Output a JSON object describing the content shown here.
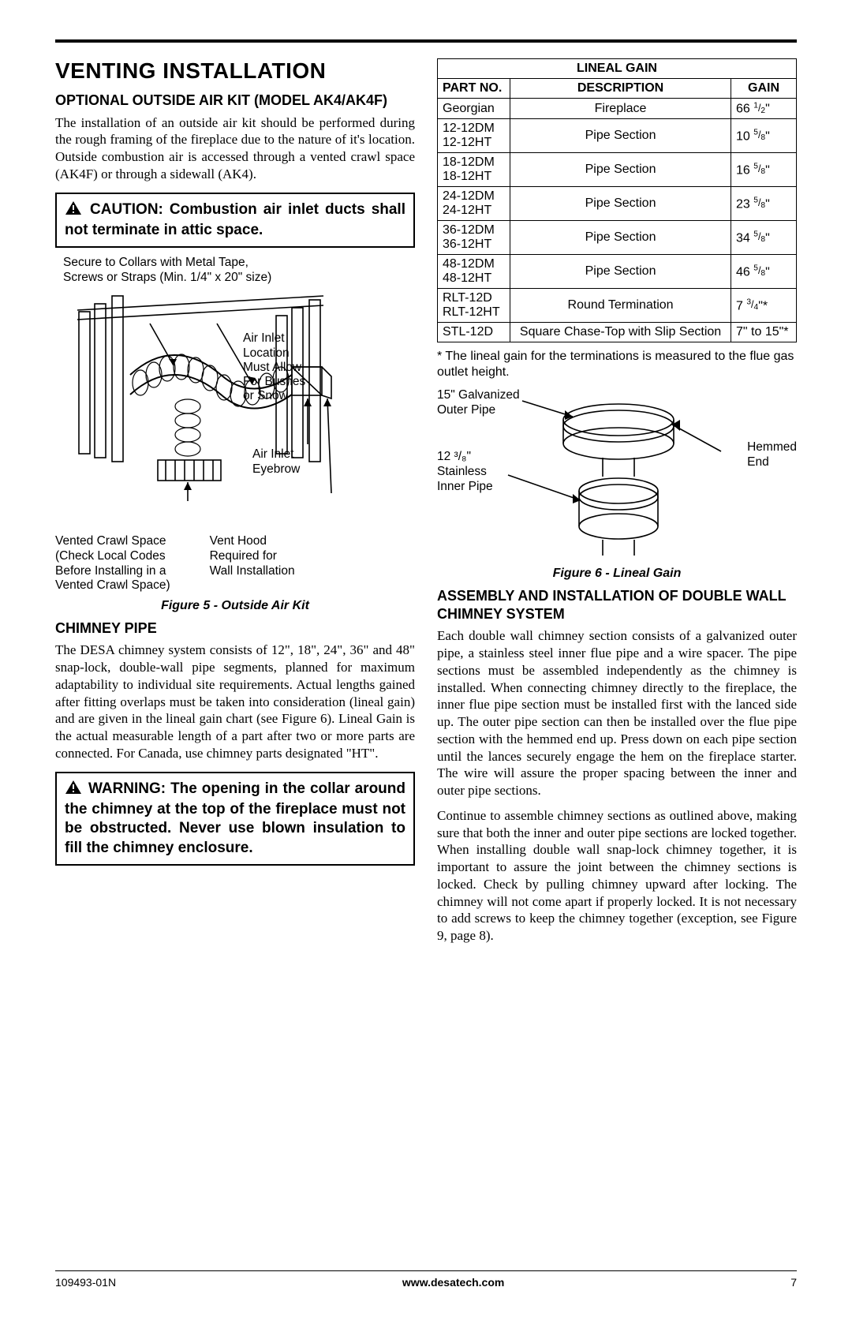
{
  "page": {
    "doc_number": "109493-01N",
    "site": "www.desatech.com",
    "page_number": "7"
  },
  "headings": {
    "main": "VENTING INSTALLATION",
    "optional_kit": "OPTIONAL OUTSIDE AIR KIT (MODEL AK4/AK4F)",
    "chimney_pipe": "CHIMNEY PIPE",
    "assembly": "ASSEMBLY AND INSTALLATION OF DOUBLE WALL CHIMNEY SYSTEM"
  },
  "paragraphs": {
    "optional_kit": "The installation of an outside air kit should be performed during the rough framing of the fireplace due to the nature of it's location. Outside combustion air is accessed through a vented crawl space (AK4F) or through a sidewall (AK4).",
    "chimney_pipe": "The DESA chimney system consists of 12\", 18\", 24\", 36\" and 48\" snap-lock, double-wall pipe segments, planned for maximum adaptability to individual site requirements. Actual lengths gained after fitting overlaps must be taken into consideration (lineal gain) and are given in the lineal gain chart (see Figure 6). Lineal Gain is the actual measurable length of a part after two or more parts are connected. For Canada, use chimney parts designated \"HT\".",
    "assembly_p1": "Each double wall chimney section consists of a galvanized outer pipe, a stainless steel inner flue pipe and a wire spacer. The pipe sections must be assembled independently as the chimney is installed. When connecting chimney directly to the fireplace, the inner flue pipe section must be installed first with the lanced side up. The outer pipe section can then be installed over the flue pipe section with the hemmed end up. Press down on each pipe section until the lances securely engage the hem on the fireplace starter. The wire will assure the proper spacing between the inner and outer pipe sections.",
    "assembly_p2": "Continue to assemble chimney sections as outlined above, making sure that both the inner and outer pipe sections are locked together. When installing double wall snap-lock chimney together, it is important to assure the joint between the chimney sections is locked. Check by pulling chimney upward after locking. The chimney will not come apart if properly locked. It is not necessary to add screws to keep the chimney together (exception, see Figure 9, page 8)."
  },
  "callouts": {
    "caution": " CAUTION: Combustion air inlet ducts shall not terminate in attic space.",
    "warning": " WARNING: The opening in the collar around the chimney at the top of the fireplace must not be obstructed. Never use blown insulation to fill the chimney enclosure."
  },
  "figure5": {
    "caption": "Figure 5 - Outside Air Kit",
    "top_note_l1": "Secure to Collars with Metal Tape,",
    "top_note_l2": "Screws or Straps (Min. 1/4\" x 20\" size)",
    "label_air_inlet_loc_l1": "Air Inlet",
    "label_air_inlet_loc_l2": "Location",
    "label_air_inlet_loc_l3": "Must Allow",
    "label_air_inlet_loc_l4": "For Bushes",
    "label_air_inlet_loc_l5": "or Snow",
    "label_eyebrow_l1": "Air Inlet",
    "label_eyebrow_l2": "Eyebrow",
    "label_vented_l1": "Vented Crawl Space",
    "label_vented_l2": "(Check Local Codes",
    "label_vented_l3": "Before Installing in a",
    "label_vented_l4": "Vented Crawl Space)",
    "label_venthood_l1": "Vent Hood",
    "label_venthood_l2": "Required for",
    "label_venthood_l3": "Wall Installation"
  },
  "lineal_table": {
    "title": "LINEAL GAIN",
    "columns": [
      "PART NO.",
      "DESCRIPTION",
      "GAIN"
    ],
    "rows": [
      {
        "parts": [
          "Georgian"
        ],
        "desc": "Fireplace",
        "gain_whole": "66",
        "gain_num": "1",
        "gain_den": "2",
        "star": ""
      },
      {
        "parts": [
          "12-12DM",
          "12-12HT"
        ],
        "desc": "Pipe Section",
        "gain_whole": "10",
        "gain_num": "5",
        "gain_den": "8",
        "star": ""
      },
      {
        "parts": [
          "18-12DM",
          "18-12HT"
        ],
        "desc": "Pipe Section",
        "gain_whole": "16",
        "gain_num": "5",
        "gain_den": "8",
        "star": ""
      },
      {
        "parts": [
          "24-12DM",
          "24-12HT"
        ],
        "desc": "Pipe Section",
        "gain_whole": "23",
        "gain_num": "5",
        "gain_den": "8",
        "star": ""
      },
      {
        "parts": [
          "36-12DM",
          "36-12HT"
        ],
        "desc": "Pipe Section",
        "gain_whole": "34",
        "gain_num": "5",
        "gain_den": "8",
        "star": ""
      },
      {
        "parts": [
          "48-12DM",
          "48-12HT"
        ],
        "desc": "Pipe Section",
        "gain_whole": "46",
        "gain_num": "5",
        "gain_den": "8",
        "star": ""
      },
      {
        "parts": [
          "RLT-12D",
          "RLT-12HT"
        ],
        "desc": "Round Termination",
        "gain_whole": "7",
        "gain_num": "3",
        "gain_den": "4",
        "star": "*"
      },
      {
        "parts": [
          "STL-12D"
        ],
        "desc": "Square Chase-Top with Slip Section",
        "gain_text": "7\" to 15\"*"
      }
    ],
    "footnote": "* The lineal gain for the terminations is measured to the flue gas outlet height."
  },
  "figure6": {
    "caption": "Figure 6 - Lineal Gain",
    "label_outer_l1": "15\" Galvanized",
    "label_outer_l2": "Outer Pipe",
    "label_inner_l1": "12 ³/₈\"",
    "label_inner_l2": "Stainless",
    "label_inner_l3": "Inner Pipe",
    "label_hemmed_l1": "Hemmed",
    "label_hemmed_l2": "End"
  },
  "colors": {
    "text": "#000000",
    "bg": "#ffffff",
    "rule": "#000000",
    "border": "#000000"
  }
}
